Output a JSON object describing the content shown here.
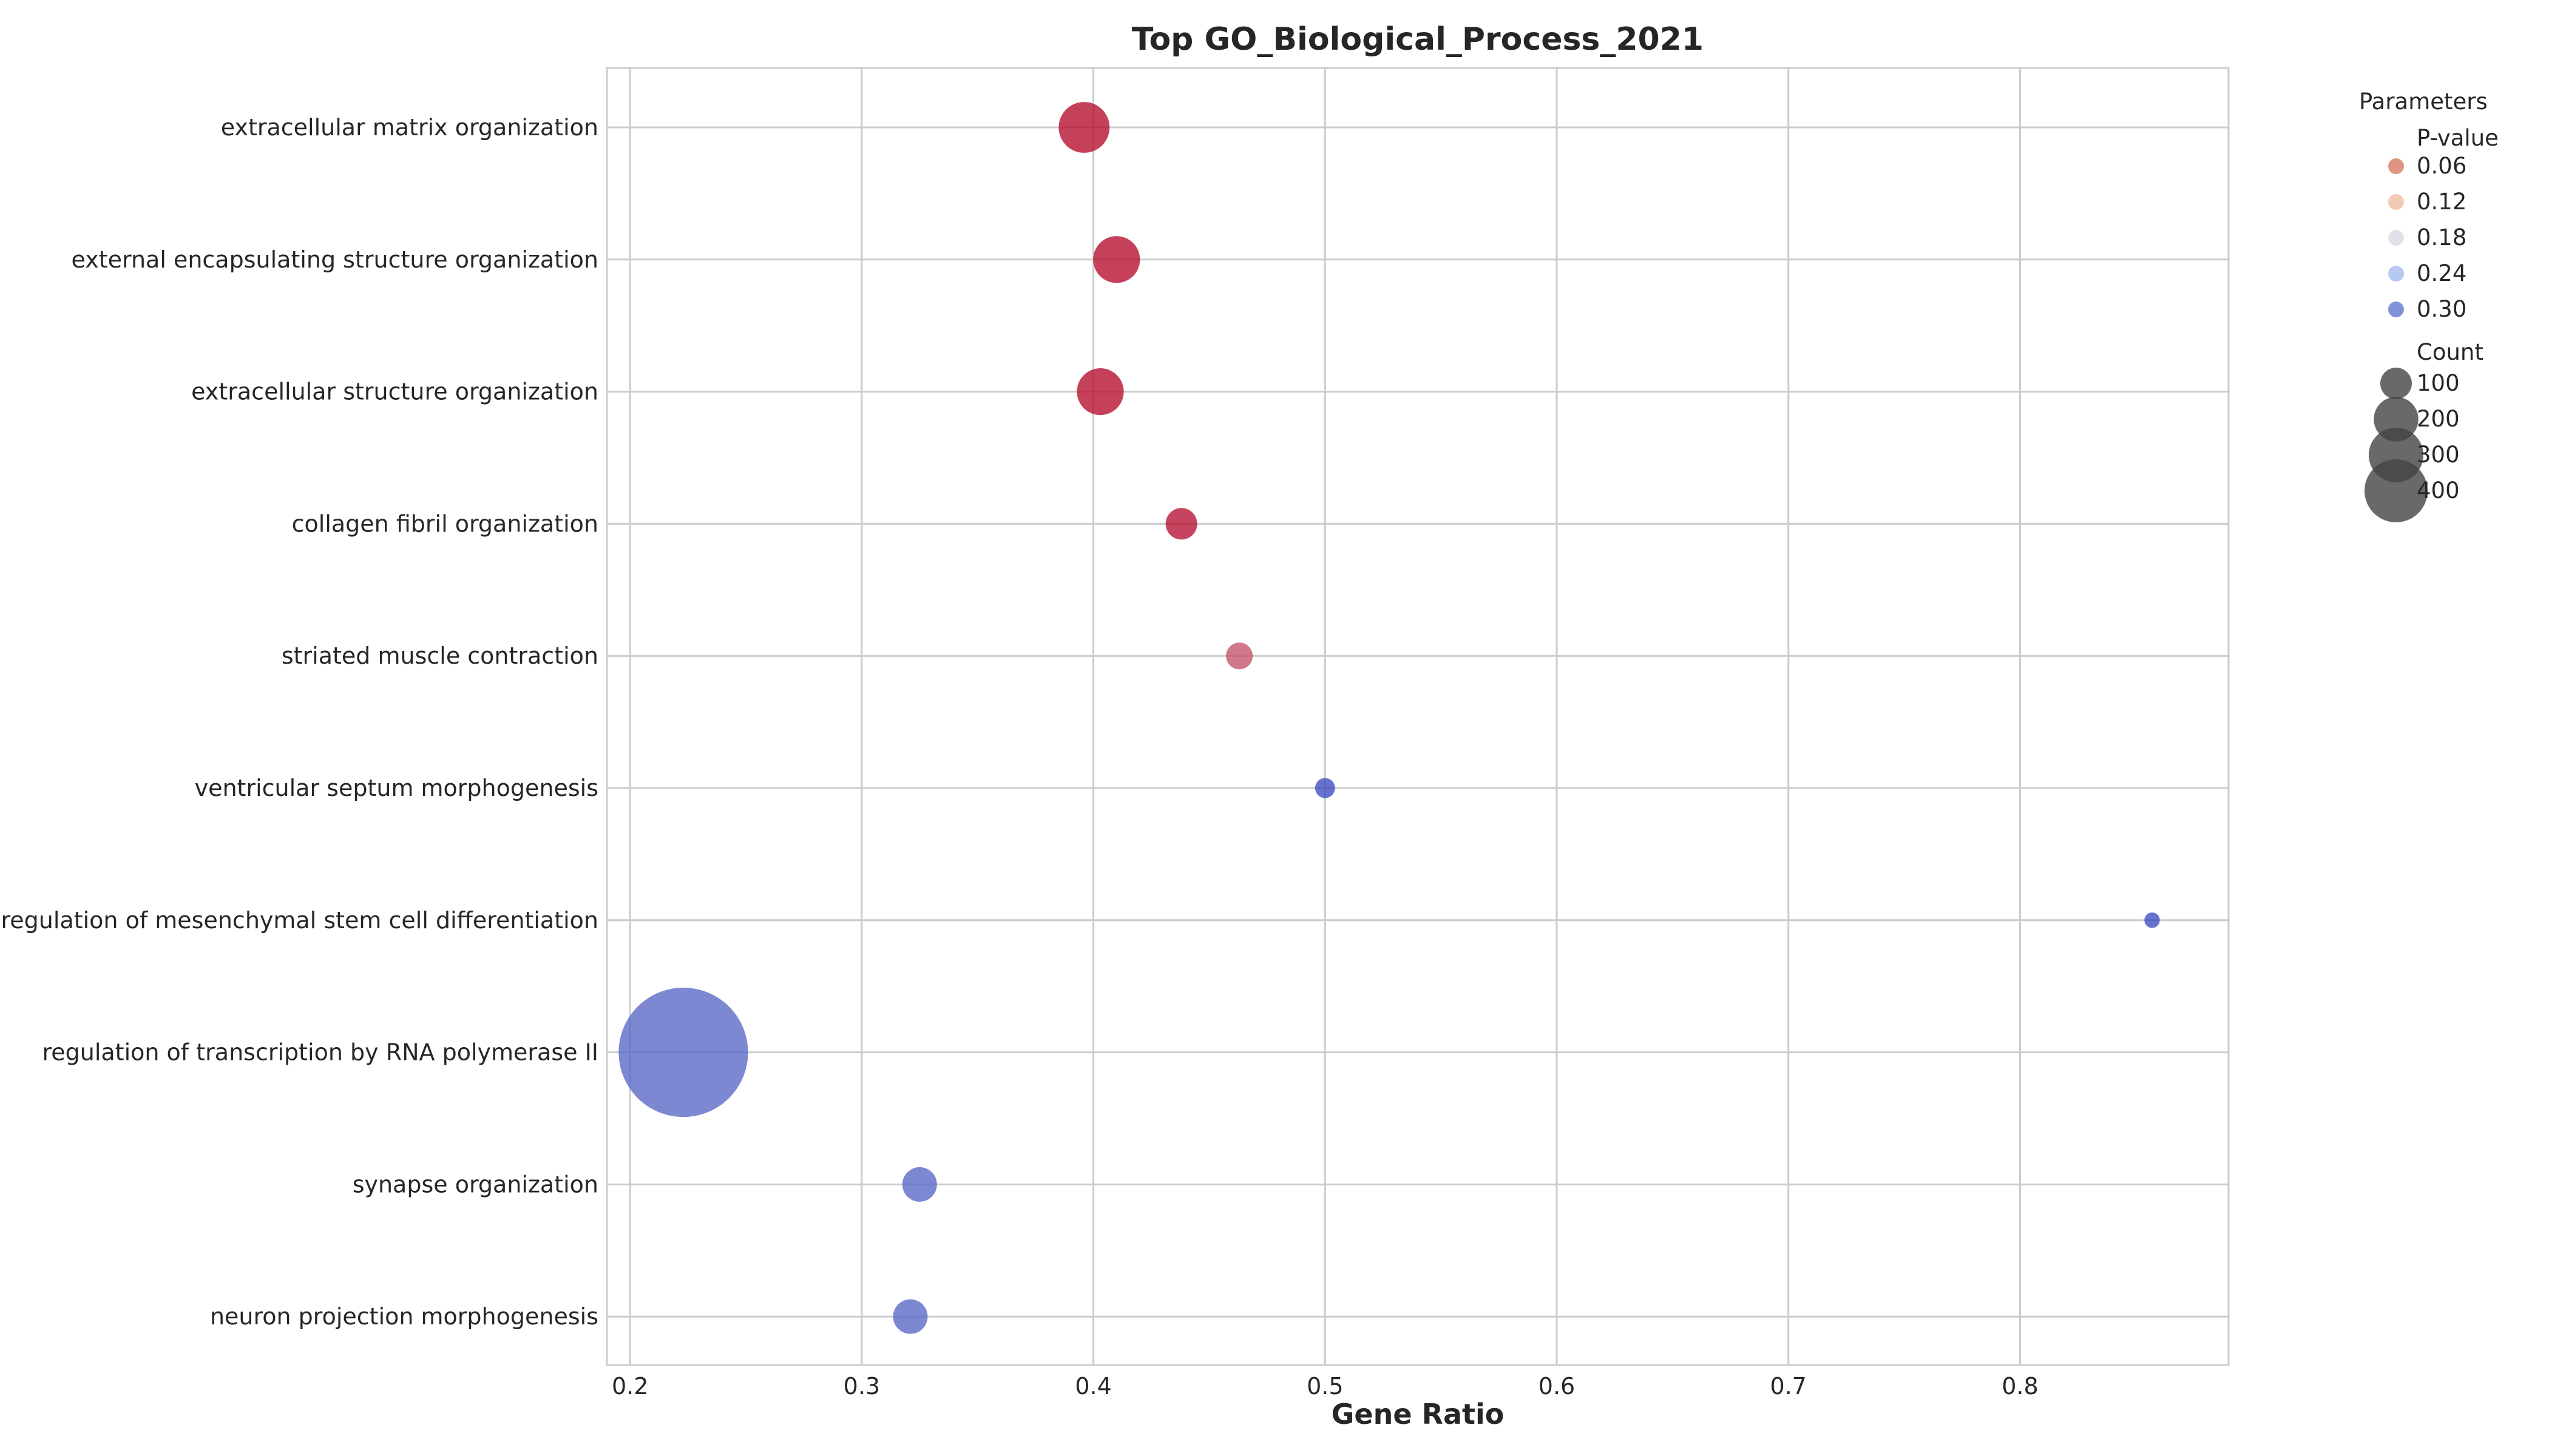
{
  "chart_data": {
    "type": "scatter",
    "title": "Top GO_Biological_Process_2021",
    "xlabel": "Gene Ratio",
    "ylabel": "",
    "xlim": [
      0.19,
      0.89
    ],
    "xticks": [
      "0.2",
      "0.3",
      "0.4",
      "0.5",
      "0.6",
      "0.7",
      "0.8"
    ],
    "xtick_values": [
      0.2,
      0.3,
      0.4,
      0.5,
      0.6,
      0.7,
      0.8
    ],
    "grid": true,
    "legend_position": "outside-right",
    "categories": [
      "extracellular matrix organization",
      "external encapsulating structure organization",
      "extracellular structure organization",
      "collagen fibril organization",
      "striated muscle contraction",
      "ventricular septum morphogenesis",
      "regulation of mesenchymal stem cell differentiation",
      "regulation of transcription by RNA polymerase II",
      "synapse organization",
      "neuron projection morphogenesis"
    ],
    "points": [
      {
        "term": "extracellular matrix organization",
        "gene_ratio": 0.396,
        "count": 65,
        "pvalue": 0.005
      },
      {
        "term": "external encapsulating structure organization",
        "gene_ratio": 0.41,
        "count": 55,
        "pvalue": 0.005
      },
      {
        "term": "extracellular structure organization",
        "gene_ratio": 0.403,
        "count": 55,
        "pvalue": 0.005
      },
      {
        "term": "collagen fibril organization",
        "gene_ratio": 0.438,
        "count": 25,
        "pvalue": 0.01
      },
      {
        "term": "striated muscle contraction",
        "gene_ratio": 0.463,
        "count": 18,
        "pvalue": 0.06
      },
      {
        "term": "ventricular septum morphogenesis",
        "gene_ratio": 0.5,
        "count": 10,
        "pvalue": 0.33
      },
      {
        "term": "regulation of mesenchymal stem cell differentiation",
        "gene_ratio": 0.857,
        "count": 6,
        "pvalue": 0.33
      },
      {
        "term": "regulation of transcription by RNA polymerase II",
        "gene_ratio": 0.223,
        "count": 420,
        "pvalue": 0.3
      },
      {
        "term": "synapse organization",
        "gene_ratio": 0.325,
        "count": 30,
        "pvalue": 0.3
      },
      {
        "term": "neuron projection morphogenesis",
        "gene_ratio": 0.321,
        "count": 30,
        "pvalue": 0.3
      }
    ],
    "legend": {
      "title": "Parameters",
      "color_title": "P-value",
      "color_entries": [
        {
          "label": "0.06",
          "color": "#d9826b"
        },
        {
          "label": "0.12",
          "color": "#f2c1a8"
        },
        {
          "label": "0.18",
          "color": "#dcdde5"
        },
        {
          "label": "0.24",
          "color": "#a9bff0"
        },
        {
          "label": "0.30",
          "color": "#6b7fd7"
        }
      ],
      "size_title": "Count",
      "size_entries": [
        {
          "label": "100",
          "count": 100
        },
        {
          "label": "200",
          "count": 200
        },
        {
          "label": "300",
          "count": 300
        },
        {
          "label": "400",
          "count": 400
        }
      ]
    },
    "colormap": {
      "low": "#b40426",
      "mid": "#dddddd",
      "high": "#3b4cc0",
      "domain": [
        0.0,
        0.33
      ]
    }
  }
}
